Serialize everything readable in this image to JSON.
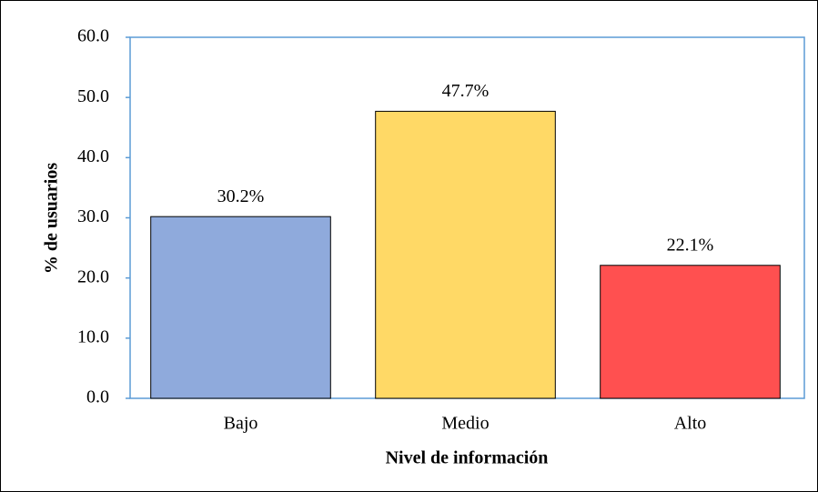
{
  "chart_data": {
    "type": "bar",
    "categories": [
      "Bajo",
      "Medio",
      "Alto"
    ],
    "values": [
      30.2,
      47.7,
      22.1
    ],
    "value_labels": [
      "30.2%",
      "47.7%",
      "22.1%"
    ],
    "colors": [
      "#8faadc",
      "#ffd966",
      "#ff5050"
    ],
    "xlabel": "Nivel de información",
    "ylabel": "% de usuarios",
    "ylim": [
      0,
      60
    ],
    "yticks": [
      {
        "value": 0,
        "label": "0.0"
      },
      {
        "value": 10,
        "label": "10.0"
      },
      {
        "value": 20,
        "label": "20.0"
      },
      {
        "value": 30,
        "label": "30.0"
      },
      {
        "value": 40,
        "label": "40.0"
      },
      {
        "value": 50,
        "label": "50.0"
      },
      {
        "value": 60,
        "label": "60.0"
      }
    ],
    "grid": false
  }
}
